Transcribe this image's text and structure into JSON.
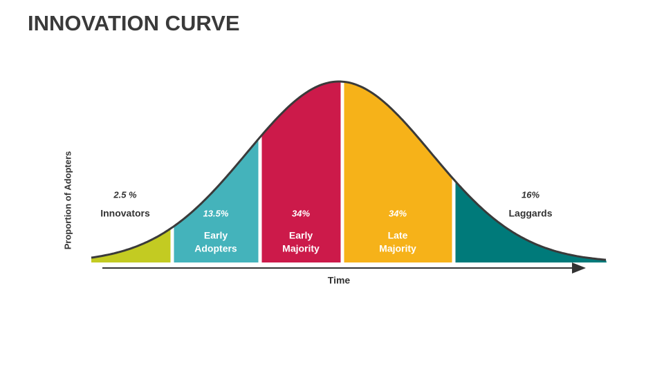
{
  "title": "INNOVATION CURVE",
  "y_axis_label": "Proportion of Adopters",
  "x_axis_label": "Time",
  "segments": [
    {
      "percent": "2.5 %",
      "label": [
        "Innovators"
      ]
    },
    {
      "percent": "13.5%",
      "label": [
        "Early",
        "Adopters"
      ]
    },
    {
      "percent": "34%",
      "label": [
        "Early",
        "Majority"
      ]
    },
    {
      "percent": "34%",
      "label": [
        "Late",
        "Majority"
      ]
    },
    {
      "percent": "16%",
      "label": [
        "Laggards"
      ]
    }
  ]
}
